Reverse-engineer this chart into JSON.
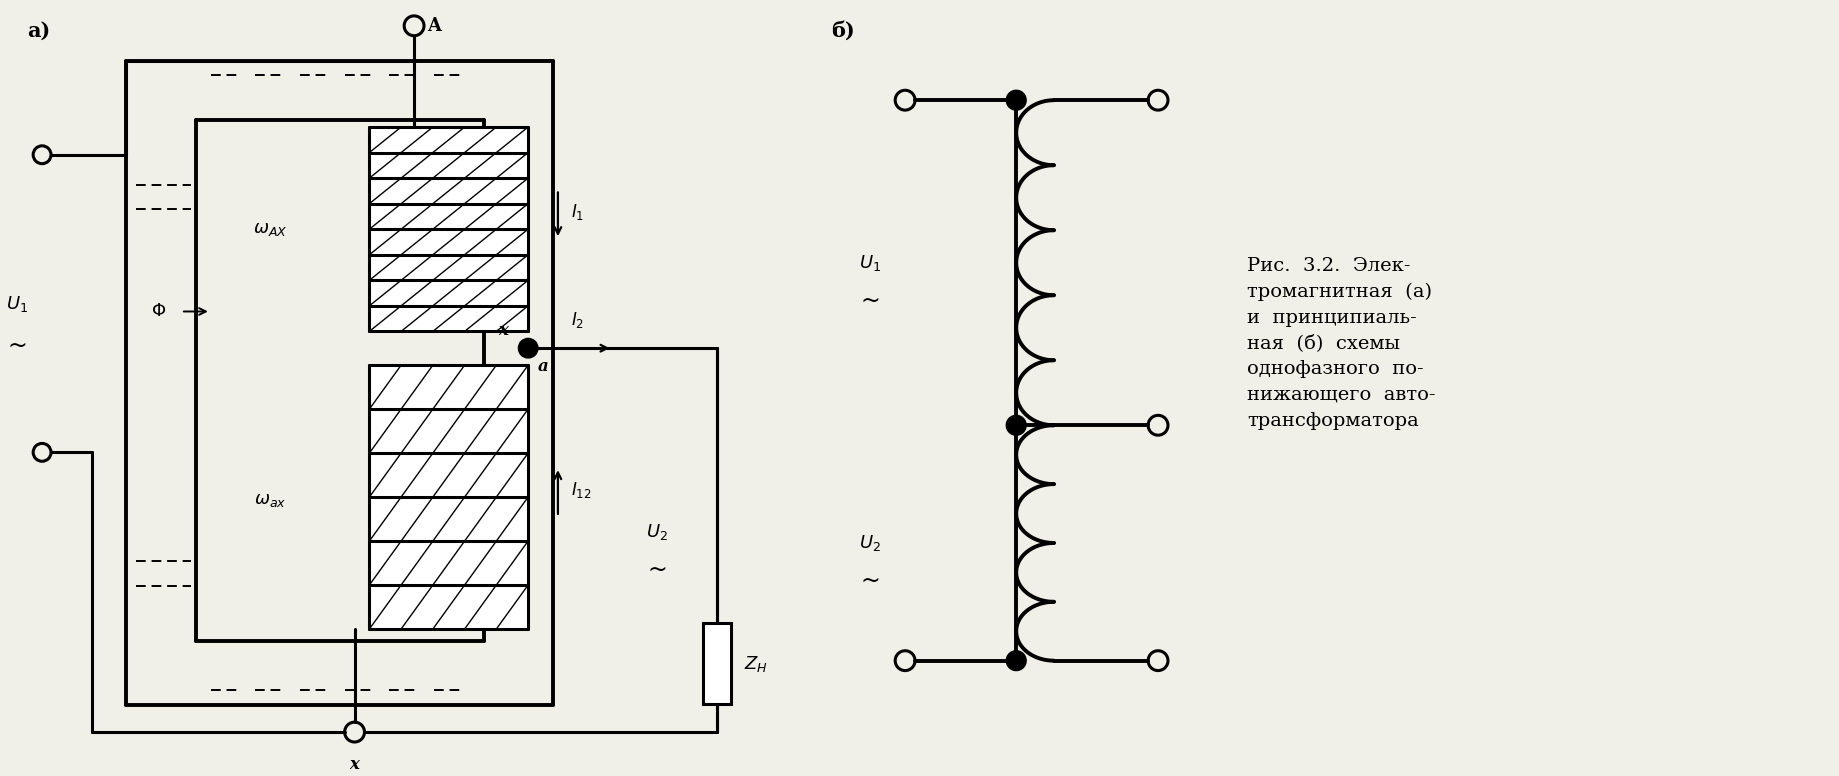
{
  "bg_color": "#f0efe8",
  "title_a": "a)",
  "title_b": "б)",
  "caption": "Рис.  3.2.  Элек-\nтромагнитная  (а)\nи  принципиаль-\nная  (б)  схемы\nоднофазного  по-\nнижающего  авто-\nтрансформатора"
}
